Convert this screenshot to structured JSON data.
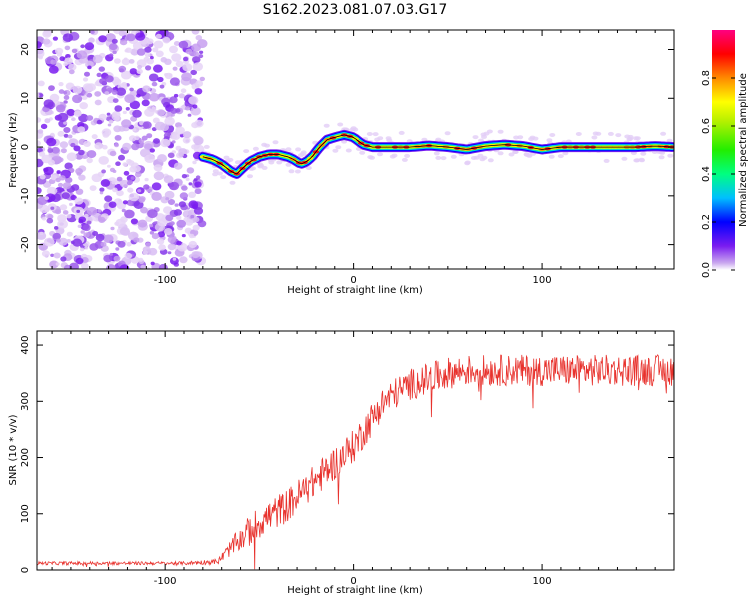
{
  "title": "S162.2023.081.07.03.G17",
  "chart_data": [
    {
      "type": "heatmap",
      "xlabel": "Height of straight line (km)",
      "ylabel": "Frequency (Hz)",
      "xlim": [
        -168,
        170
      ],
      "ylim": [
        -25,
        24
      ],
      "x_ticks": [
        -100,
        0,
        100
      ],
      "x_tick_labels": [
        "-100",
        "0",
        "100"
      ],
      "y_ticks": [
        -20,
        -10,
        0,
        10,
        20
      ],
      "y_tick_labels": [
        "-20",
        "-10",
        "0",
        "10",
        "20"
      ],
      "grid": false,
      "noise_region_x": [
        -168,
        -80
      ],
      "ridge": {
        "x": [
          -80,
          -75,
          -70,
          -65,
          -62,
          -58,
          -55,
          -50,
          -45,
          -40,
          -35,
          -32,
          -28,
          -25,
          -22,
          -18,
          -14,
          -10,
          -5,
          0,
          5,
          10,
          20,
          30,
          40,
          50,
          60,
          70,
          80,
          90,
          100,
          110,
          120,
          130,
          140,
          150,
          160,
          170
        ],
        "freq": [
          -2,
          -2.5,
          -3.5,
          -5,
          -5.5,
          -4,
          -3,
          -2,
          -1.5,
          -1.5,
          -2,
          -2.5,
          -3.5,
          -3,
          -2,
          0,
          1.5,
          2,
          2.5,
          2,
          0.5,
          0,
          0,
          0,
          0.3,
          0,
          -0.5,
          0.2,
          0.5,
          0.2,
          -0.5,
          0,
          0,
          0,
          0,
          0,
          0.2,
          0
        ]
      },
      "colorbar": {
        "label": "Normalized spectral amplitude",
        "range": [
          0,
          1
        ],
        "ticks": [
          0,
          0.2,
          0.4,
          0.6,
          0.8
        ],
        "tick_labels": [
          "0.0",
          "0.2",
          "0.4",
          "0.6",
          "0.8"
        ]
      }
    },
    {
      "type": "line",
      "xlabel": "Height of straight line (km)",
      "ylabel": "SNR (10 * v/v)",
      "xlim": [
        -168,
        170
      ],
      "ylim": [
        0,
        425
      ],
      "x_ticks": [
        -100,
        0,
        100
      ],
      "x_tick_labels": [
        "-100",
        "0",
        "100"
      ],
      "y_ticks": [
        0,
        100,
        200,
        300,
        400
      ],
      "y_tick_labels": [
        "0",
        "100",
        "200",
        "300",
        "400"
      ],
      "grid": false,
      "series": [
        {
          "color": "#e8322d",
          "x": [
            -168,
            -140,
            -110,
            -90,
            -72,
            -65,
            -60,
            -55,
            -50,
            -45,
            -40,
            -35,
            -30,
            -25,
            -20,
            -15,
            -10,
            -5,
            0,
            5,
            10,
            15,
            20,
            25,
            30,
            40,
            50,
            60,
            70,
            80,
            90,
            100,
            110,
            120,
            130,
            140,
            150,
            160,
            170
          ],
          "y": [
            12,
            12,
            12,
            12,
            15,
            40,
            55,
            70,
            85,
            95,
            105,
            115,
            130,
            145,
            160,
            175,
            190,
            205,
            220,
            245,
            270,
            295,
            310,
            320,
            330,
            340,
            350,
            355,
            355,
            355,
            355,
            355,
            355,
            355,
            355,
            355,
            355,
            355,
            355
          ],
          "noise": [
            3,
            3,
            3,
            3,
            5,
            15,
            22,
            28,
            30,
            30,
            30,
            30,
            30,
            30,
            30,
            30,
            30,
            30,
            30,
            30,
            30,
            28,
            28,
            28,
            28,
            28,
            28,
            28,
            28,
            28,
            28,
            28,
            28,
            28,
            28,
            28,
            28,
            28,
            28
          ]
        }
      ]
    }
  ]
}
